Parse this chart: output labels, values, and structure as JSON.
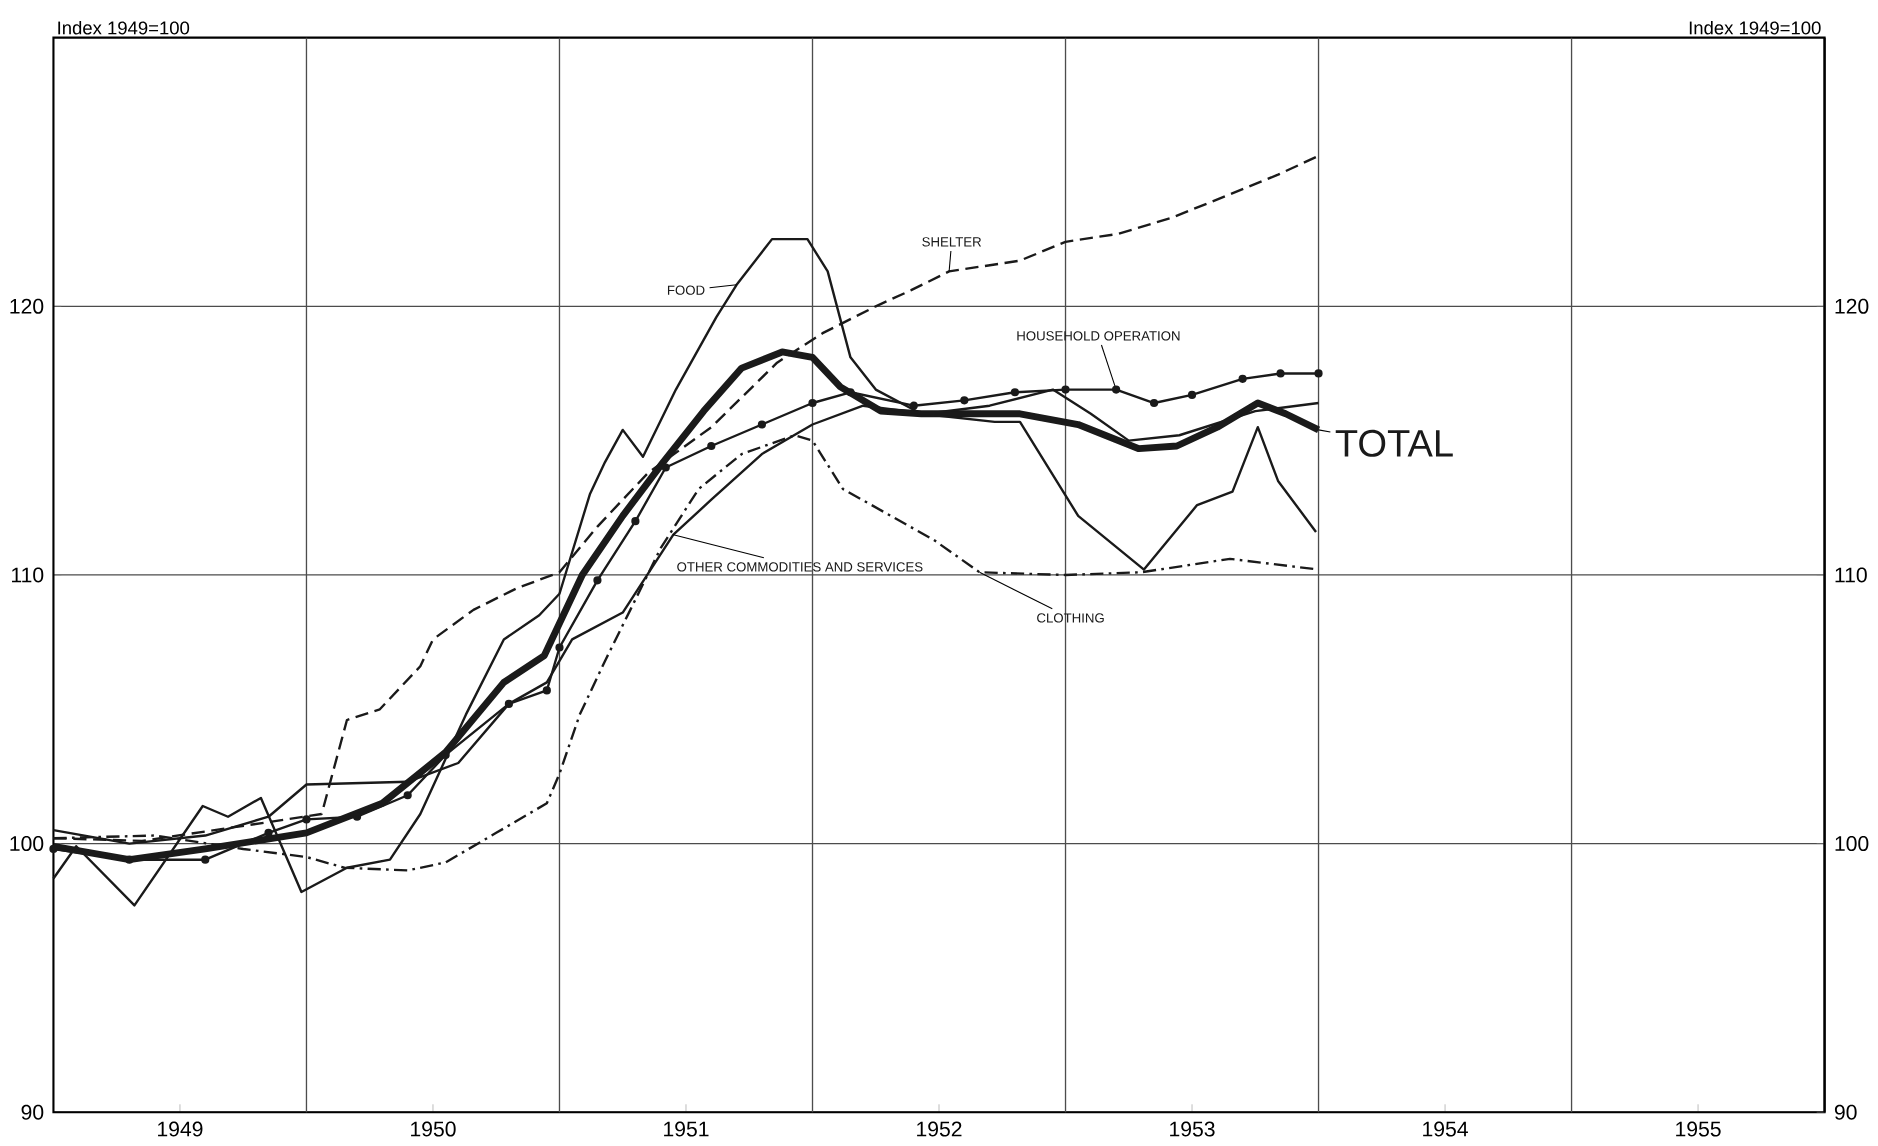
{
  "chart_data": {
    "type": "line",
    "ylabel": "Index 1949=100",
    "y2label": "Index 1949=100",
    "xlim": [
      1949,
      1956
    ],
    "xticks": [
      {
        "value": 1949.5,
        "label": "1949"
      },
      {
        "value": 1950,
        "label": null
      },
      {
        "value": 1950.5,
        "label": "1950"
      },
      {
        "value": 1951,
        "label": null
      },
      {
        "value": 1951.5,
        "label": "1951"
      },
      {
        "value": 1952,
        "label": null
      },
      {
        "value": 1952.5,
        "label": "1952"
      },
      {
        "value": 1953,
        "label": null
      },
      {
        "value": 1953.5,
        "label": "1953"
      },
      {
        "value": 1954,
        "label": null
      },
      {
        "value": 1954.5,
        "label": "1954"
      },
      {
        "value": 1955,
        "label": null
      },
      {
        "value": 1955.5,
        "label": "1955"
      }
    ],
    "ylim": [
      90,
      130
    ],
    "yticks": [
      90,
      100,
      110,
      120
    ],
    "y2lim": [
      90,
      130
    ],
    "y2ticks": [
      90,
      100,
      110,
      120
    ],
    "grid": true,
    "legend": false,
    "series": [
      {
        "name": "TOTAL",
        "color": "#1a1a1a",
        "line_style": "solid",
        "marker": "none",
        "x": [
          1949.0,
          1949.3,
          1949.6,
          1950.0,
          1950.3,
          1950.55,
          1950.78,
          1950.94,
          1951.09,
          1951.25,
          1951.41,
          1951.57,
          1951.72,
          1951.88,
          1952.0,
          1952.11,
          1952.27,
          1952.43,
          1952.66,
          1952.82,
          1953.05,
          1953.29,
          1953.44,
          1953.6,
          1953.76,
          1953.87,
          1954.0
        ],
        "values": [
          99.9,
          99.4,
          99.8,
          100.4,
          101.5,
          103.4,
          106.0,
          107.0,
          110.0,
          112.2,
          114.2,
          116.1,
          117.7,
          118.3,
          118.1,
          117.0,
          116.1,
          116.0,
          116.0,
          116.0,
          115.6,
          114.7,
          114.8,
          115.5,
          116.4,
          116.0,
          115.4
        ]
      },
      {
        "name": "FOOD",
        "color": "#1a1a1a",
        "line_style": "solid",
        "marker": "none",
        "x": [
          1949.0,
          1949.09,
          1949.32,
          1949.59,
          1949.69,
          1949.82,
          1949.98,
          1950.16,
          1950.33,
          1950.45,
          1950.63,
          1950.78,
          1950.92,
          1951.0,
          1951.12,
          1951.18,
          1951.25,
          1951.33,
          1951.46,
          1951.62,
          1951.7,
          1951.84,
          1951.98,
          1952.06,
          1952.15,
          1952.25,
          1952.43,
          1952.72,
          1952.82,
          1953.05,
          1953.31,
          1953.52,
          1953.66,
          1953.76,
          1953.84,
          1953.99
        ],
        "values": [
          98.7,
          99.9,
          97.7,
          101.4,
          101.0,
          101.7,
          98.2,
          99.1,
          99.4,
          101.1,
          104.8,
          107.6,
          108.5,
          109.3,
          113.0,
          114.2,
          115.4,
          114.4,
          116.9,
          119.6,
          120.8,
          122.5,
          122.5,
          121.3,
          118.1,
          116.9,
          116.0,
          115.7,
          115.7,
          112.2,
          110.2,
          112.6,
          113.1,
          115.5,
          113.5,
          111.6
        ]
      },
      {
        "name": "SHELTER",
        "color": "#1a1a1a",
        "line_style": "dashed",
        "marker": "none",
        "x": [
          1949.0,
          1949.35,
          1949.85,
          1950.06,
          1950.1,
          1950.16,
          1950.29,
          1950.45,
          1950.5,
          1950.66,
          1950.83,
          1951.0,
          1951.15,
          1951.35,
          1951.6,
          1951.86,
          1952.04,
          1952.25,
          1952.39,
          1952.54,
          1952.82,
          1953.0,
          1953.21,
          1953.42,
          1953.58,
          1953.84,
          1954.0
        ],
        "values": [
          100.2,
          100.1,
          100.8,
          101.1,
          102.5,
          104.6,
          105.0,
          106.6,
          107.6,
          108.7,
          109.5,
          110.1,
          111.8,
          113.8,
          115.5,
          117.9,
          119.0,
          120.0,
          120.6,
          121.3,
          121.7,
          122.4,
          122.7,
          123.3,
          123.9,
          124.9,
          125.6
        ]
      },
      {
        "name": "HOUSEHOLD OPERATION",
        "color": "#1a1a1a",
        "line_style": "solid",
        "marker": "circle",
        "x": [
          1949.0,
          1949.3,
          1949.6,
          1949.85,
          1950.0,
          1950.2,
          1950.4,
          1950.55,
          1950.8,
          1950.95,
          1951.0,
          1951.15,
          1951.3,
          1951.42,
          1951.6,
          1951.8,
          1952.0,
          1952.15,
          1952.4,
          1952.6,
          1952.8,
          1953.0,
          1953.2,
          1953.35,
          1953.5,
          1953.7,
          1953.85,
          1954.0
        ],
        "values": [
          99.8,
          99.4,
          99.4,
          100.4,
          100.9,
          101.0,
          101.8,
          103.3,
          105.2,
          105.7,
          107.3,
          109.8,
          112.0,
          114.0,
          114.8,
          115.6,
          116.4,
          116.8,
          116.3,
          116.5,
          116.8,
          116.9,
          116.9,
          116.4,
          116.7,
          117.3,
          117.5,
          117.5
        ]
      },
      {
        "name": "CLOTHING",
        "color": "#1a1a1a",
        "line_style": "dashdot",
        "marker": "none",
        "x": [
          1949.0,
          1949.4,
          1949.75,
          1950.0,
          1950.15,
          1950.4,
          1950.55,
          1950.75,
          1950.95,
          1951.0,
          1951.08,
          1951.18,
          1951.28,
          1951.4,
          1951.55,
          1951.72,
          1951.93,
          1952.0,
          1952.12,
          1952.48,
          1952.66,
          1953.0,
          1953.3,
          1953.65,
          1954.0
        ],
        "values": [
          100.2,
          100.3,
          99.8,
          99.5,
          99.1,
          99.0,
          99.3,
          100.4,
          101.5,
          102.6,
          104.8,
          106.8,
          108.7,
          111.0,
          113.2,
          114.5,
          115.2,
          115.0,
          113.2,
          111.3,
          110.1,
          110.0,
          110.1,
          110.6,
          110.2
        ]
      },
      {
        "name": "OTHER COMMODITIES AND SERVICES",
        "color": "#1a1a1a",
        "line_style": "solid",
        "marker": "none",
        "x": [
          1949.0,
          1949.3,
          1949.6,
          1949.85,
          1950.0,
          1950.4,
          1950.6,
          1950.8,
          1950.95,
          1951.05,
          1951.25,
          1951.45,
          1951.6,
          1951.8,
          1952.0,
          1952.2,
          1952.45,
          1952.7,
          1952.95,
          1953.1,
          1953.25,
          1953.45,
          1953.75,
          1954.0
        ],
        "values": [
          100.5,
          100.0,
          100.3,
          101.0,
          102.2,
          102.3,
          103.0,
          105.2,
          106.0,
          107.6,
          108.6,
          111.5,
          112.8,
          114.5,
          115.6,
          116.3,
          116.0,
          116.3,
          116.9,
          116.0,
          115.0,
          115.2,
          116.1,
          116.4
        ]
      }
    ]
  }
}
